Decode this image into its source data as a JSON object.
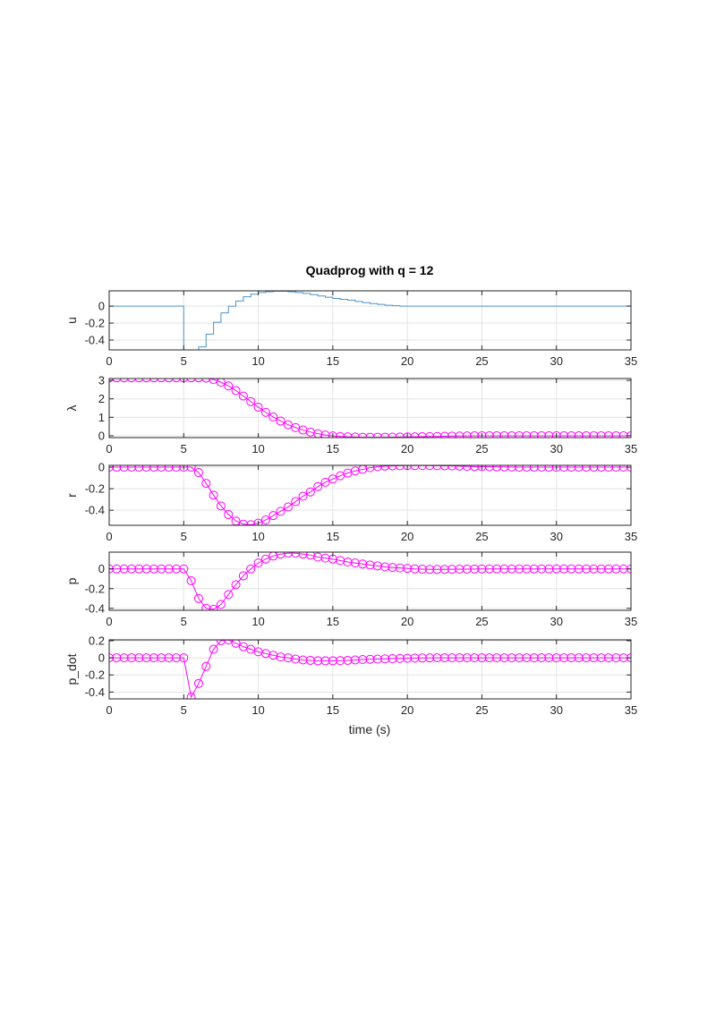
{
  "chart_data": {
    "title": "Quadprog with q = 12",
    "xlabel": "time (s)",
    "xlim": [
      0,
      35
    ],
    "xticks": [
      0,
      5,
      10,
      15,
      20,
      25,
      30,
      35
    ],
    "grid": true,
    "x": [
      0,
      0.5,
      1,
      1.5,
      2,
      2.5,
      3,
      3.5,
      4,
      4.5,
      5,
      5.5,
      6,
      6.5,
      7,
      7.5,
      8,
      8.5,
      9,
      9.5,
      10,
      10.5,
      11,
      11.5,
      12,
      12.5,
      13,
      13.5,
      14,
      14.5,
      15,
      15.5,
      16,
      16.5,
      17,
      17.5,
      18,
      18.5,
      19,
      19.5,
      20,
      20.5,
      21,
      21.5,
      22,
      22.5,
      23,
      23.5,
      24,
      24.5,
      25,
      25.5,
      26,
      26.5,
      27,
      27.5,
      28,
      28.5,
      29,
      29.5,
      30,
      30.5,
      31,
      31.5,
      32,
      32.5,
      33,
      33.5,
      34,
      34.5,
      35
    ],
    "subplots": [
      {
        "ylabel": "u",
        "type": "stairs",
        "color": "#4f93c9",
        "ylim": [
          -0.516,
          0.18
        ],
        "yticks": [
          0,
          -0.2,
          -0.4
        ],
        "yticklabels": [
          "0",
          "-0.2",
          "-0.4"
        ],
        "values": [
          0,
          0,
          0,
          0,
          0,
          0,
          0,
          0,
          0,
          0,
          -0.6,
          -0.6,
          -0.48,
          -0.33,
          -0.19,
          -0.08,
          0,
          0.06,
          0.11,
          0.14,
          0.16,
          0.17,
          0.175,
          0.175,
          0.17,
          0.16,
          0.15,
          0.135,
          0.12,
          0.105,
          0.09,
          0.08,
          0.07,
          0.055,
          0.04,
          0.03,
          0.02,
          0.01,
          0.005,
          0,
          0,
          0,
          0,
          0,
          0,
          0,
          0,
          0,
          0,
          0,
          0,
          0,
          0,
          0,
          0,
          0,
          0,
          0,
          0,
          0,
          0,
          0,
          0,
          0,
          0,
          0,
          0,
          0,
          0,
          0,
          0
        ]
      },
      {
        "ylabel": "λ",
        "type": "line-marker",
        "marker": "circle",
        "color": "#ff00ff",
        "ylim": [
          -0.1,
          3.1
        ],
        "yticks": [
          0,
          1,
          2,
          3
        ],
        "yticklabels": [
          "0",
          "1",
          "2",
          "3"
        ],
        "values": [
          3.14,
          3.14,
          3.14,
          3.14,
          3.14,
          3.14,
          3.14,
          3.14,
          3.14,
          3.14,
          3.14,
          3.14,
          3.14,
          3.12,
          3.05,
          2.9,
          2.7,
          2.45,
          2.15,
          1.85,
          1.55,
          1.27,
          1.02,
          0.8,
          0.6,
          0.44,
          0.31,
          0.2,
          0.11,
          0.04,
          -0.01,
          -0.04,
          -0.06,
          -0.07,
          -0.08,
          -0.08,
          -0.08,
          -0.08,
          -0.075,
          -0.07,
          -0.065,
          -0.06,
          -0.05,
          -0.045,
          -0.04,
          -0.03,
          -0.02,
          -0.015,
          -0.01,
          -0.005,
          0,
          0,
          0,
          0,
          0,
          0,
          0,
          0,
          0,
          0,
          0,
          0,
          0,
          0,
          0,
          0,
          0,
          0,
          0,
          0,
          0
        ]
      },
      {
        "ylabel": "r",
        "type": "line-marker",
        "marker": "circle",
        "color": "#ff00ff",
        "ylim": [
          -0.54,
          0.017
        ],
        "yticks": [
          0,
          -0.2,
          -0.4
        ],
        "yticklabels": [
          "0",
          "-0.2",
          "-0.4"
        ],
        "values": [
          0,
          0,
          0,
          0,
          0,
          0,
          0,
          0,
          0,
          0,
          0,
          0,
          -0.05,
          -0.15,
          -0.26,
          -0.36,
          -0.44,
          -0.5,
          -0.53,
          -0.535,
          -0.52,
          -0.49,
          -0.45,
          -0.41,
          -0.37,
          -0.32,
          -0.27,
          -0.23,
          -0.18,
          -0.14,
          -0.11,
          -0.08,
          -0.055,
          -0.035,
          -0.02,
          -0.005,
          0.005,
          0.01,
          0.012,
          0.014,
          0.015,
          0.015,
          0.015,
          0.015,
          0.014,
          0.013,
          0.012,
          0.01,
          0.008,
          0.006,
          0.005,
          0.004,
          0.003,
          0.002,
          0.001,
          0,
          0,
          0,
          0,
          0,
          0,
          0,
          0,
          0,
          0,
          0,
          0,
          0,
          0,
          0,
          0
        ]
      },
      {
        "ylabel": "p",
        "type": "line-marker",
        "marker": "circle",
        "color": "#ff00ff",
        "ylim": [
          -0.42,
          0.17
        ],
        "yticks": [
          0,
          -0.2,
          -0.4
        ],
        "yticklabels": [
          "0",
          "-0.2",
          "-0.4"
        ],
        "values": [
          0,
          0,
          0,
          0,
          0,
          0,
          0,
          0,
          0,
          0,
          0,
          -0.12,
          -0.3,
          -0.4,
          -0.41,
          -0.36,
          -0.26,
          -0.16,
          -0.07,
          0,
          0.06,
          0.1,
          0.13,
          0.15,
          0.16,
          0.16,
          0.15,
          0.14,
          0.12,
          0.11,
          0.1,
          0.085,
          0.07,
          0.06,
          0.05,
          0.04,
          0.03,
          0.02,
          0.015,
          0.01,
          0.005,
          0,
          -0.003,
          -0.005,
          -0.005,
          -0.005,
          -0.004,
          -0.003,
          -0.002,
          -0.001,
          0,
          0,
          0,
          0,
          0,
          0,
          0,
          0,
          0,
          0,
          0,
          0,
          0,
          0,
          0,
          0,
          0,
          0,
          0,
          0,
          0
        ]
      },
      {
        "ylabel": "p_dot",
        "type": "line-marker",
        "marker": "circle",
        "color": "#ff00ff",
        "ylim": [
          -0.48,
          0.21
        ],
        "yticks": [
          0.2,
          0,
          -0.2,
          -0.4
        ],
        "yticklabels": [
          "0.2",
          "0",
          "-0.2",
          "-0.4"
        ],
        "values": [
          0,
          0,
          0,
          0,
          0,
          0,
          0,
          0,
          0,
          0,
          0,
          -0.46,
          -0.3,
          -0.1,
          0.1,
          0.2,
          0.21,
          0.17,
          0.13,
          0.1,
          0.07,
          0.05,
          0.03,
          0.01,
          0,
          -0.015,
          -0.025,
          -0.03,
          -0.035,
          -0.035,
          -0.035,
          -0.033,
          -0.03,
          -0.025,
          -0.02,
          -0.017,
          -0.015,
          -0.012,
          -0.01,
          -0.007,
          -0.005,
          -0.003,
          -0.002,
          -0.001,
          0,
          0,
          0,
          0,
          0,
          0,
          0,
          0,
          0,
          0,
          0,
          0,
          0,
          0,
          0,
          0,
          0,
          0,
          0,
          0,
          0,
          0,
          0,
          0,
          0,
          0,
          0
        ]
      }
    ]
  }
}
